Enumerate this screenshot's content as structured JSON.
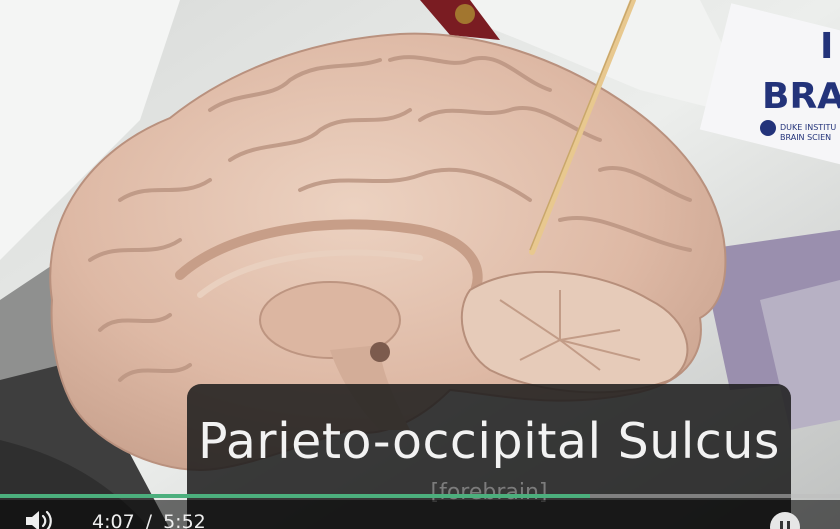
{
  "caption": {
    "title": "Parieto-occipital Sulcus",
    "subtitle": "[forebrain]"
  },
  "sign": {
    "line1": "I",
    "line2": "BRA",
    "org_line1": "DUKE INSTITU",
    "org_line2": "BRAIN SCIEN"
  },
  "player": {
    "current_time": "4:07",
    "time_separator": "/",
    "duration": "5:52",
    "progress_fraction": 0.702,
    "accent_color": "#4caf7d"
  },
  "icons": {
    "volume": "volume-icon",
    "pause": "pause-icon"
  }
}
